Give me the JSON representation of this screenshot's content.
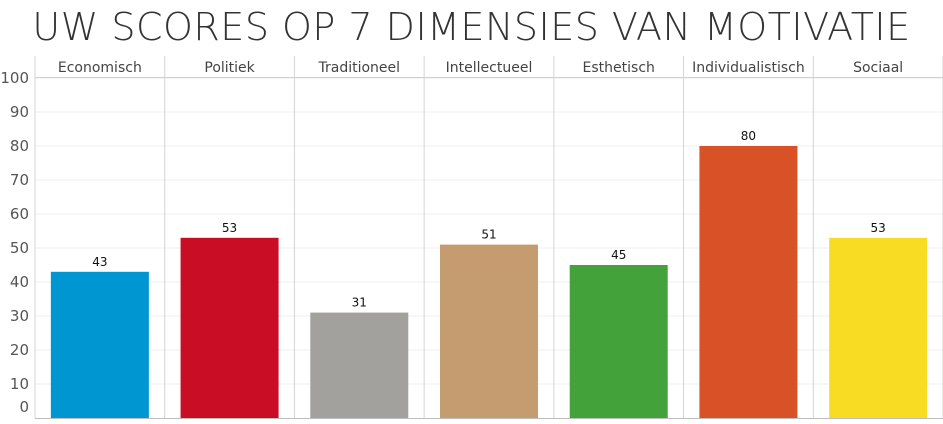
{
  "title": "UW SCORES OP 7 DIMENSIES VAN MOTIVATIE",
  "chart_data": {
    "type": "bar",
    "title": "UW SCORES OP 7 DIMENSIES VAN MOTIVATIE",
    "categories": [
      "Economisch",
      "Politiek",
      "Traditioneel",
      "Intellectueel",
      "Esthetisch",
      "Individualistisch",
      "Sociaal"
    ],
    "values": [
      43,
      53,
      31,
      51,
      45,
      80,
      53
    ],
    "colors": [
      "#0096d1",
      "#c80d24",
      "#a3a19d",
      "#c49c70",
      "#44a23a",
      "#d95227",
      "#f8dc24"
    ],
    "yticks": [
      0,
      10,
      20,
      30,
      40,
      50,
      60,
      70,
      80,
      90,
      100
    ],
    "ylim": [
      0,
      100
    ],
    "xlabel": "",
    "ylabel": "",
    "grid": true,
    "legend": "none"
  }
}
